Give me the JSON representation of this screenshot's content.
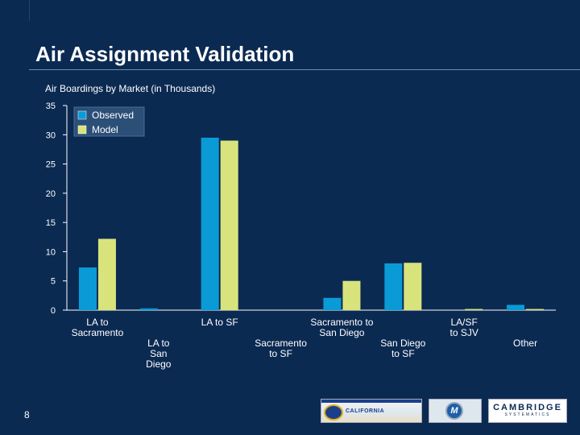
{
  "slide": {
    "title": "Air Assignment Validation",
    "subtitle": "Air Boardings by Market (in Thousands)",
    "page_number": "8"
  },
  "logos": {
    "california": "CALIFORNIA",
    "cambridge": "CAMBRIDGE",
    "cambridge_sub": "SYSTEMATICS",
    "m_logo": "M"
  },
  "colors": {
    "background": "#0b2a52",
    "observed": "#0a9bd6",
    "model": "#d9e37c",
    "axis": "#ffffff"
  },
  "chart_data": {
    "type": "bar",
    "title": "Air Boardings by Market (in Thousands)",
    "xlabel": "",
    "ylabel": "",
    "ylim": [
      0,
      35
    ],
    "yticks": [
      0,
      5,
      10,
      15,
      20,
      25,
      30,
      35
    ],
    "grid": false,
    "legend": "top-left",
    "categories": [
      [
        "LA to",
        "Sacramento"
      ],
      [
        "LA to",
        "San",
        "Diego"
      ],
      [
        "LA to SF"
      ],
      [
        "Sacramento",
        "to SF"
      ],
      [
        "Sacramento to",
        "San Diego"
      ],
      [
        "San Diego",
        "to SF"
      ],
      [
        "LA/SF",
        "to SJV"
      ],
      [
        "Other"
      ]
    ],
    "series": [
      {
        "name": "Observed",
        "color": "#0a9bd6",
        "values": [
          7.3,
          0.3,
          29.5,
          0.0,
          2.1,
          8.0,
          0.0,
          0.9
        ]
      },
      {
        "name": "Model",
        "color": "#d9e37c",
        "values": [
          12.2,
          0.0,
          29.0,
          0.0,
          5.0,
          8.1,
          0.2,
          0.2
        ]
      }
    ]
  }
}
